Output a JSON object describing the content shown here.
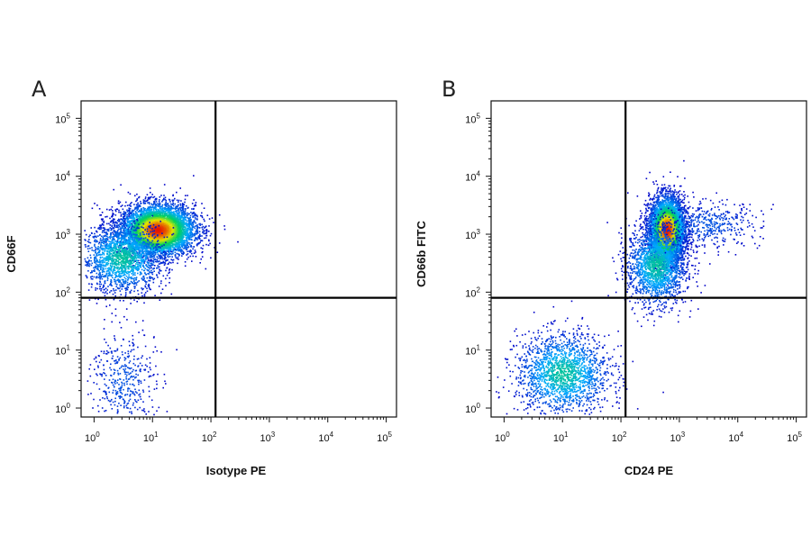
{
  "chart_data": [
    {
      "type": "scatter",
      "subtype": "flow-cytometry-density-plot",
      "panel_label": "A",
      "xlabel": "Isotype PE",
      "ylabel": "CD66F",
      "x_scale": "log",
      "y_scale": "log",
      "xlim": [
        0.6,
        150000
      ],
      "ylim": [
        0.7,
        200000
      ],
      "x_ticks": [
        "10^0",
        "10^1",
        "10^2",
        "10^3",
        "10^4",
        "10^5"
      ],
      "y_ticks": [
        "10^0",
        "10^1",
        "10^2",
        "10^3",
        "10^4",
        "10^5"
      ],
      "quadrant_gate": {
        "x": 120,
        "y": 80
      },
      "populations": [
        {
          "center": [
            12,
            1200
          ],
          "spread_log": [
            0.32,
            0.22
          ],
          "density": "high"
        },
        {
          "center": [
            3,
            400
          ],
          "spread_log": [
            0.35,
            0.3
          ],
          "density": "medium"
        },
        {
          "center": [
            3,
            3
          ],
          "spread_log": [
            0.28,
            0.45
          ],
          "density": "low"
        }
      ],
      "grid": false,
      "legend": "none"
    },
    {
      "type": "scatter",
      "subtype": "flow-cytometry-density-plot",
      "panel_label": "B",
      "xlabel": "CD24 PE",
      "ylabel": "CD66b FITC",
      "x_scale": "log",
      "y_scale": "log",
      "xlim": [
        0.6,
        150000
      ],
      "ylim": [
        0.7,
        200000
      ],
      "x_ticks": [
        "10^0",
        "10^1",
        "10^2",
        "10^3",
        "10^4",
        "10^5"
      ],
      "y_ticks": [
        "10^0",
        "10^1",
        "10^2",
        "10^3",
        "10^4",
        "10^5"
      ],
      "quadrant_gate": {
        "x": 120,
        "y": 80
      },
      "populations": [
        {
          "center": [
            600,
            1200
          ],
          "spread_log": [
            0.15,
            0.28
          ],
          "density": "high"
        },
        {
          "center": [
            400,
            300
          ],
          "spread_log": [
            0.25,
            0.35
          ],
          "density": "medium"
        },
        {
          "center": [
            10,
            4
          ],
          "spread_log": [
            0.4,
            0.35
          ],
          "density": "medium"
        },
        {
          "center": [
            3000,
            1500
          ],
          "spread_log": [
            0.45,
            0.2
          ],
          "density": "low"
        }
      ],
      "grid": false,
      "legend": "none"
    }
  ]
}
